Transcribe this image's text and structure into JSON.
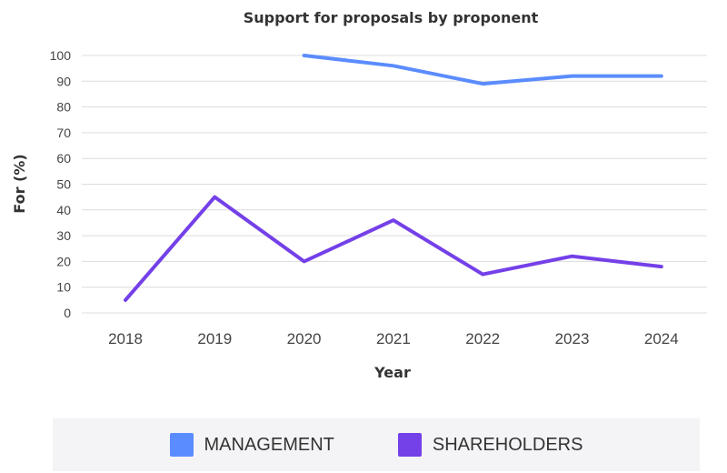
{
  "chart_data": {
    "type": "line",
    "title": "Support for proposals by proponent",
    "xlabel": "Year",
    "ylabel": "For (%)",
    "categories": [
      "2018",
      "2019",
      "2020",
      "2021",
      "2022",
      "2023",
      "2024"
    ],
    "yticks": [
      "0",
      "10",
      "20",
      "30",
      "40",
      "50",
      "60",
      "70",
      "80",
      "90",
      "100"
    ],
    "ylim": [
      0,
      100
    ],
    "grid": true,
    "legend_position": "bottom",
    "series": [
      {
        "name": "MANAGEMENT",
        "color": "#5b8cff",
        "values": [
          null,
          null,
          100,
          96,
          89,
          92,
          92
        ]
      },
      {
        "name": "SHAREHOLDERS",
        "color": "#7440e8",
        "values": [
          5,
          45,
          20,
          36,
          15,
          22,
          18
        ]
      }
    ]
  }
}
